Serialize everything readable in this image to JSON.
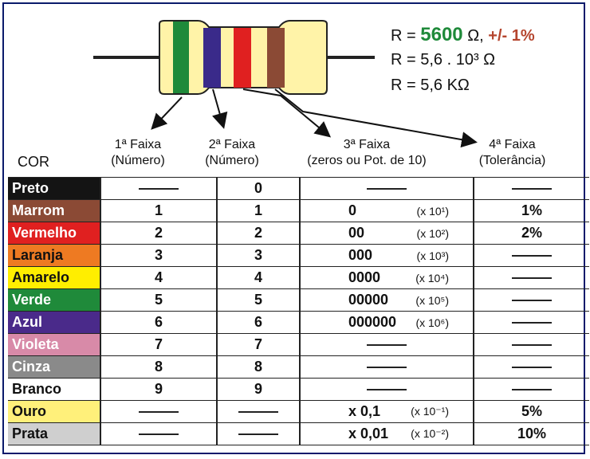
{
  "formula": {
    "line1_prefix": "R = ",
    "line1_value": "5600",
    "line1_unit": " Ω,",
    "line1_tolerance": "+/- 1%",
    "line2": "R = 5,6 . 10³ Ω",
    "line3": "R = 5,6 KΩ"
  },
  "headers": {
    "cor": "COR",
    "band1": "1ª Faixa",
    "band1_sub": "(Número)",
    "band2": "2ª Faixa",
    "band2_sub": "(Número)",
    "band3": "3ª Faixa",
    "band3_sub": "(zeros ou Pot. de 10)",
    "band4": "4ª Faixa",
    "band4_sub": "(Tolerância)"
  },
  "colors": {
    "resistor_body": "#fff3a8",
    "band1": "#1f8a3a",
    "band2": "#3a2a8a",
    "band3": "#e02020",
    "band4": "#8b4a35",
    "lead": "#222222"
  },
  "rows": [
    {
      "name": "Preto",
      "bg": "#141414",
      "fg": "#ffffff",
      "d1": "",
      "d2": "0",
      "zeros": "",
      "mult": "",
      "tol": ""
    },
    {
      "name": "Marrom",
      "bg": "#8b4a35",
      "fg": "#ffffff",
      "d1": "1",
      "d2": "1",
      "zeros": "0",
      "mult": "(x 10¹)",
      "tol": "1%"
    },
    {
      "name": "Vermelho",
      "bg": "#e02020",
      "fg": "#ffffff",
      "d1": "2",
      "d2": "2",
      "zeros": "00",
      "mult": "(x 10²)",
      "tol": "2%"
    },
    {
      "name": "Laranja",
      "bg": "#ee7a22",
      "fg": "#111111",
      "d1": "3",
      "d2": "3",
      "zeros": "000",
      "mult": "(x 10³)",
      "tol": ""
    },
    {
      "name": "Amarelo",
      "bg": "#ffee00",
      "fg": "#111111",
      "d1": "4",
      "d2": "4",
      "zeros": "0000",
      "mult": "(x 10⁴)",
      "tol": ""
    },
    {
      "name": "Verde",
      "bg": "#1f8a3a",
      "fg": "#ffffff",
      "d1": "5",
      "d2": "5",
      "zeros": "00000",
      "mult": "(x 10⁵)",
      "tol": ""
    },
    {
      "name": "Azul",
      "bg": "#4a2a8a",
      "fg": "#ffffff",
      "d1": "6",
      "d2": "6",
      "zeros": "000000",
      "mult": "(x 10⁶)",
      "tol": ""
    },
    {
      "name": "Violeta",
      "bg": "#d88aa8",
      "fg": "#ffffff",
      "d1": "7",
      "d2": "7",
      "zeros": "",
      "mult": "",
      "tol": ""
    },
    {
      "name": "Cinza",
      "bg": "#8a8a8a",
      "fg": "#ffffff",
      "d1": "8",
      "d2": "8",
      "zeros": "",
      "mult": "",
      "tol": ""
    },
    {
      "name": "Branco",
      "bg": "#ffffff",
      "fg": "#111111",
      "d1": "9",
      "d2": "9",
      "zeros": "",
      "mult": "",
      "tol": ""
    },
    {
      "name": "Ouro",
      "bg": "#fff07a",
      "fg": "#111111",
      "d1": "",
      "d2": "",
      "zeros": "x 0,1",
      "mult": "(x 10⁻¹)",
      "tol": "5%"
    },
    {
      "name": "Prata",
      "bg": "#cfcfcf",
      "fg": "#111111",
      "d1": "",
      "d2": "",
      "zeros": "x 0,01",
      "mult": "(x 10⁻²)",
      "tol": "10%"
    }
  ]
}
